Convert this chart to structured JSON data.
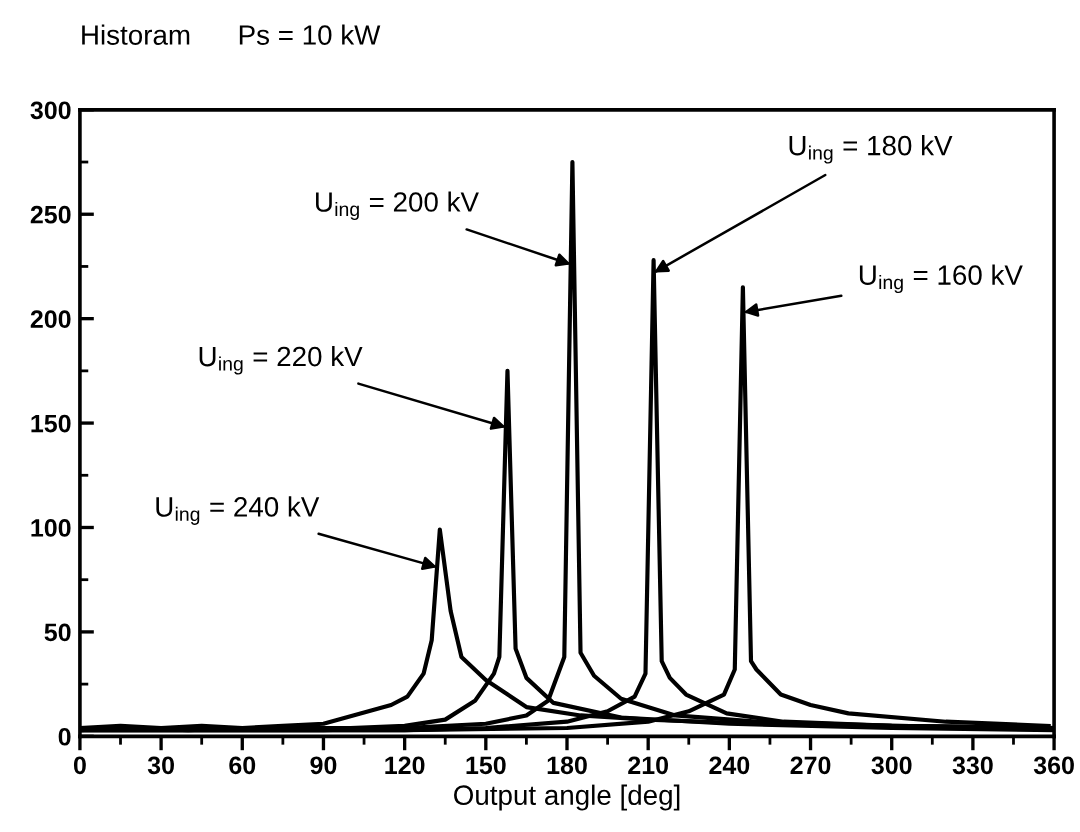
{
  "chart_data": {
    "type": "line",
    "title": "Historam",
    "subtitle": "Ps = 10 kW",
    "xlabel": "Output angle [deg]",
    "xlim": [
      0,
      360
    ],
    "xticks": [
      0,
      30,
      60,
      90,
      120,
      150,
      180,
      210,
      240,
      270,
      300,
      330,
      360
    ],
    "ylim": [
      0,
      300
    ],
    "yticks": [
      0,
      50,
      100,
      150,
      200,
      250,
      300
    ],
    "grid": false,
    "legend": false,
    "marker": "none",
    "line_style": "solid",
    "series": [
      {
        "color": "#000000",
        "x": [
          0,
          15,
          30,
          45,
          60,
          75,
          90,
          104,
          115,
          121,
          127,
          130,
          133,
          137,
          141,
          150,
          165,
          185,
          210,
          250,
          300,
          360
        ],
        "values": [
          4,
          5,
          4,
          5,
          4,
          5,
          6,
          11,
          15,
          19,
          30,
          46,
          99,
          60,
          38,
          27,
          14,
          10,
          8,
          6,
          5,
          4
        ]
      },
      {
        "color": "#000000",
        "x": [
          0,
          20,
          40,
          60,
          80,
          100,
          120,
          135,
          146,
          153,
          155,
          158,
          161,
          165,
          175,
          200,
          240,
          300,
          360
        ],
        "values": [
          3,
          4,
          3,
          4,
          4,
          4,
          5,
          8,
          17,
          30,
          38,
          175,
          42,
          28,
          16,
          9,
          6,
          4,
          3
        ]
      },
      {
        "color": "#000000",
        "x": [
          0,
          30,
          60,
          90,
          120,
          150,
          165,
          173,
          179,
          182,
          185,
          190,
          200,
          220,
          250,
          300,
          360
        ],
        "values": [
          3,
          3,
          3,
          3,
          4,
          6,
          10,
          17,
          38,
          275,
          40,
          29,
          18,
          10,
          7,
          5,
          4
        ]
      },
      {
        "color": "#000000",
        "x": [
          0,
          60,
          120,
          150,
          180,
          195,
          205,
          209,
          212,
          215,
          218,
          224,
          239,
          260,
          300,
          360
        ],
        "values": [
          3,
          3,
          3,
          4,
          7,
          12,
          19,
          30,
          228,
          36,
          28,
          20,
          11,
          7,
          5,
          4
        ]
      },
      {
        "color": "#000000",
        "x": [
          0,
          60,
          120,
          180,
          210,
          225,
          238,
          242,
          245,
          248,
          250,
          259,
          270,
          284,
          320,
          358
        ],
        "values": [
          3,
          3,
          3,
          4,
          7,
          12,
          20,
          32,
          215,
          36,
          32,
          20,
          15,
          11,
          7,
          5
        ]
      }
    ],
    "annotations": [
      {
        "text": "U$_{ing}$ = 240 kV",
        "x": 132,
        "y": 81
      },
      {
        "text": "U$_{ing}$ = 220 kV",
        "x": 157.4,
        "y": 148
      },
      {
        "text": "U$_{ing}$ = 200 kV",
        "x": 181.4,
        "y": 226
      },
      {
        "text": "U$_{ing}$ = 180 kV",
        "x": 212.1,
        "y": 222
      },
      {
        "text": "U$_{ing}$ = 160 kV",
        "x": 245.2,
        "y": 203
      }
    ]
  }
}
